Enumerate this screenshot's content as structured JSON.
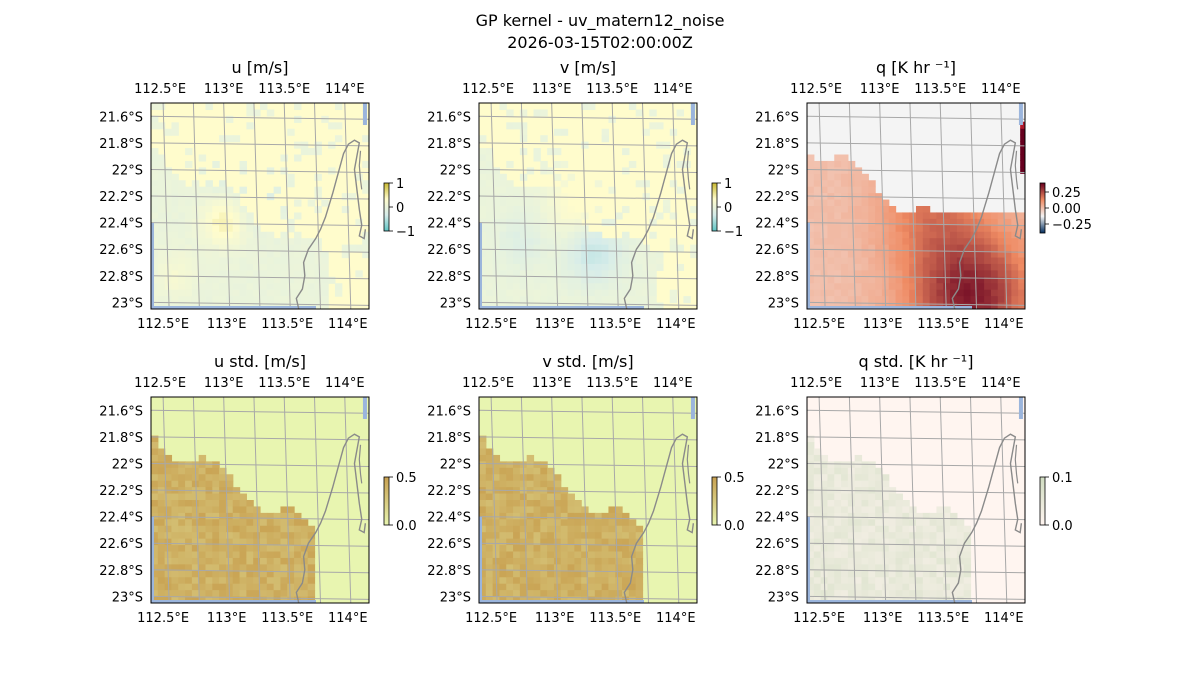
{
  "figure": {
    "title": "GP kernel - uv_matern12_noise",
    "timestamp": "2026-03-15T02:00:00Z"
  },
  "map": {
    "lon_ticks": [
      "112.5°E",
      "113°E",
      "113.5°E",
      "114°E"
    ],
    "lat_ticks": [
      "21.6°S",
      "21.8°S",
      "22°S",
      "22.2°S",
      "22.4°S",
      "22.6°S",
      "22.8°S",
      "23°S"
    ],
    "coastline_color": "#8a8a8a",
    "ocean_edge_color": "#9bb5dc",
    "gridline_color": "#a8a8a8"
  },
  "chart_data": [
    {
      "type": "heatmap",
      "title": "u [m/s]",
      "colorbar": {
        "ticks": [
          "1",
          "0",
          "−1"
        ],
        "range": [
          -1,
          1
        ]
      },
      "background": "#fffccc",
      "colormap": [
        "#5ec4c4",
        "#d6ecea",
        "#fffccc",
        "#c8b830"
      ],
      "pattern": "mixed patches; warm yellow blob near 113.0°E 22.4°S, cyan tint near 113.3°E 22.2°S"
    },
    {
      "type": "heatmap",
      "title": "v [m/s]",
      "colorbar": {
        "ticks": [
          "1",
          "0",
          "−1"
        ],
        "range": [
          -1,
          1
        ]
      },
      "background": "#fffccc",
      "colormap": [
        "#5ec4c4",
        "#d6ecea",
        "#fffccc",
        "#c8b830"
      ],
      "pattern": "yellow band near 22.3°S, cyan band near 22.6°S"
    },
    {
      "type": "heatmap",
      "title": "q [K hr ⁻¹]",
      "colorbar": {
        "ticks": [
          "0.25",
          "0.00",
          "−0.25"
        ],
        "range": [
          -0.35,
          0.35
        ]
      },
      "background": "#f4f4f4",
      "colormap": [
        "#053061",
        "#f4f4f4",
        "#ef8a62",
        "#67001f"
      ],
      "pattern": "salmon gradient increasing toward 113.7°E 22.9°S; dark red column at 114.2°E 22.1°S"
    },
    {
      "type": "heatmap",
      "title": "u std. [m/s]",
      "colorbar": {
        "ticks": [
          "0.5",
          "0.0"
        ],
        "range": [
          0,
          0.5
        ]
      },
      "background": "#e8f5b0",
      "colormap": [
        "#e8f5b0",
        "#c8a050"
      ],
      "pattern": "low over open water, high (brown) over observed region south-west"
    },
    {
      "type": "heatmap",
      "title": "v std. [m/s]",
      "colorbar": {
        "ticks": [
          "0.5",
          "0.0"
        ],
        "range": [
          0,
          0.5
        ]
      },
      "background": "#e8f5b0",
      "colormap": [
        "#e8f5b0",
        "#c8a050"
      ],
      "pattern": "same as u std."
    },
    {
      "type": "heatmap",
      "title": "q std. [K hr ⁻¹]",
      "colorbar": {
        "ticks": [
          "0.1",
          "0.0"
        ],
        "range": [
          0,
          0.1
        ]
      },
      "background": "#fff5f0",
      "colormap": [
        "#fff5f0",
        "#cfdcc0"
      ],
      "pattern": "light green over observed region south-west"
    }
  ]
}
